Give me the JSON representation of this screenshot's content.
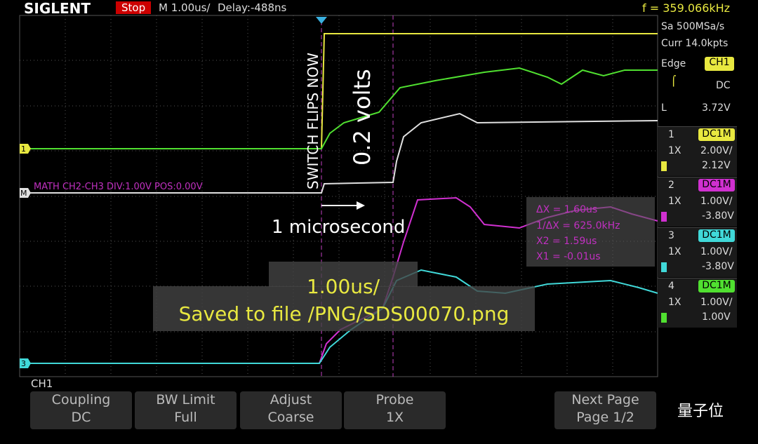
{
  "top_bar": {
    "brand": "SIGLENT",
    "status": "Stop",
    "timebase": "M 1.00us/",
    "delay": "Delay:-488ns",
    "frequency": "f = 359.066kHz"
  },
  "acquisition": {
    "sample_rate": "Sa 500MSa/s",
    "memory_depth": "Curr 14.0kpts"
  },
  "trigger": {
    "type": "Edge",
    "source": "CH1",
    "coupling": "DC",
    "level_label": "L",
    "level": "3.72V"
  },
  "channels": [
    {
      "number": "1",
      "coupling": "DC1M",
      "probe": "1X",
      "scale": "2.00V/",
      "offset": "2.12V"
    },
    {
      "number": "2",
      "coupling": "DC1M",
      "probe": "1X",
      "scale": "1.00V/",
      "offset": "-3.80V"
    },
    {
      "number": "3",
      "coupling": "DC1M",
      "probe": "1X",
      "scale": "1.00V/",
      "offset": "-3.80V"
    },
    {
      "number": "4",
      "coupling": "DC1M",
      "probe": "1X",
      "scale": "1.00V/",
      "offset": "1.00V"
    }
  ],
  "trace_markers": [
    "1",
    "M",
    "3"
  ],
  "math_label": "MATH  CH2-CH3  DIV:1.00V  POS:0.00V",
  "annotations": {
    "switch": "SWITCH FLIPS NOW",
    "volts": "0.2 volts",
    "time": "1 microsecond"
  },
  "cursor_readout": [
    "ΔX = 1.60us",
    "1/ΔX = 625.0kHz",
    "X2 = 1.59us",
    "X1 = -0.01us"
  ],
  "message": {
    "timebase": "1.00us/",
    "saved": "Saved to file /PNG/SDS00070.png"
  },
  "active_channel": "CH1",
  "menu": [
    {
      "label": "Coupling",
      "value": "DC"
    },
    {
      "label": "BW Limit",
      "value": "Full"
    },
    {
      "label": "Adjust",
      "value": "Coarse"
    },
    {
      "label": "Probe",
      "value": "1X"
    },
    {
      "label": "Next Page",
      "value": "Page 1/2"
    }
  ],
  "watermark": "量子位"
}
